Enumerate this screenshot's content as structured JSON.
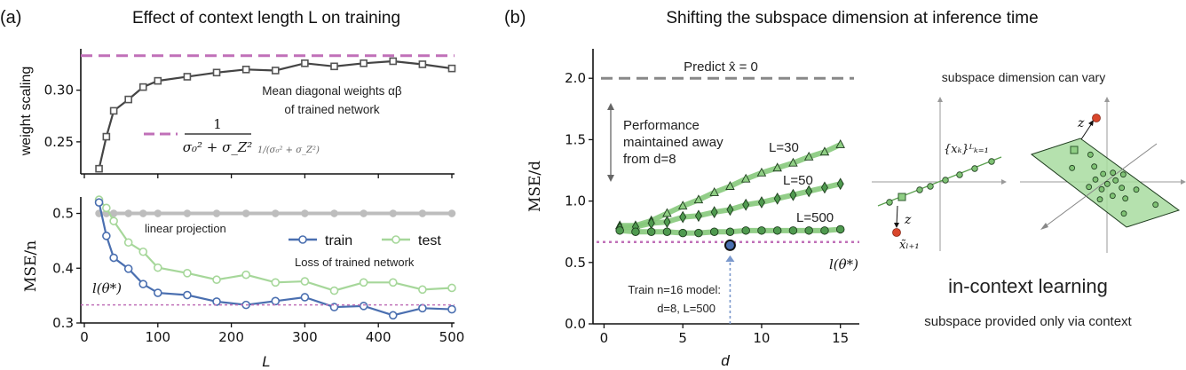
{
  "panel_a": {
    "letter": "(a)",
    "title": "Effect of context length L on training",
    "top_ylabel": "weight scaling",
    "bottom_ylabel": "MSE/n",
    "xlabel": "L",
    "top_annotation_line1": "Mean diagonal weights αβ",
    "top_annotation_line2": "of trained network",
    "ref_numerator": "1",
    "ref_denominator": "σ₀² + σ_Z²",
    "linear_projection_label": "linear projection",
    "loss_label": "Loss of trained network",
    "optimum_label": "l(θ*)"
  },
  "panel_b": {
    "letter": "(b)",
    "title": "Shifting the subspace dimension at inference time",
    "predict_label": "Predict x̂ = 0",
    "perf_line1": "Performance",
    "perf_line2": "maintained away",
    "perf_line3": "from d=8",
    "train_line1": "Train n=16 model:",
    "train_line2": "d=8, L=500",
    "optimum_label": "l(θ*)",
    "diagram": {
      "top_caption": "subspace dimension can vary",
      "context_label": "{xₖ}ᴸₖ₌₁",
      "z_label": "z",
      "query_label": "x̃ₗ₊₁",
      "main_caption": "in-context learning",
      "sub_caption": "subspace provided only via context"
    }
  },
  "colors": {
    "reference": "#c070b8",
    "train": "#4a6fb0",
    "test": "#a6d79a",
    "baseline": "#bdbdbd",
    "weights": "#444444",
    "green_dark": "#4f9a4f",
    "green_line": "#86c97b",
    "red": "#d9462b",
    "plane": "#a8dca0"
  },
  "chart_data": [
    {
      "type": "line",
      "title": "",
      "xlabel": "",
      "ylabel": "weight scaling",
      "xlim": [
        0,
        500
      ],
      "ylim": [
        0.219,
        0.34
      ],
      "xticks": [
        0,
        100,
        200,
        300,
        400,
        500
      ],
      "yticks": [
        0.25,
        0.3
      ],
      "ytick_labels": [
        "0.25",
        "0.30"
      ],
      "x": [
        20,
        30,
        40,
        60,
        80,
        100,
        140,
        180,
        220,
        260,
        300,
        340,
        380,
        420,
        460,
        500
      ],
      "series": [
        {
          "values": [
            0.224,
            0.255,
            0.28,
            0.291,
            0.303,
            0.309,
            0.313,
            0.317,
            0.32,
            0.319,
            0.326,
            0.323,
            0.326,
            0.328,
            0.325,
            0.321
          ],
          "marker": "square"
        }
      ],
      "reference_line": {
        "y": 0.3333,
        "style": "dashed",
        "label": "1/(σ₀² + σ_Z²)"
      },
      "grid": false
    },
    {
      "type": "line",
      "xlabel": "L",
      "ylabel": "MSE/n",
      "xlim": [
        0,
        500
      ],
      "ylim": [
        0.3,
        0.53
      ],
      "xticks": [
        0,
        100,
        200,
        300,
        400,
        500
      ],
      "xtick_labels": [
        "0",
        "100",
        "200",
        "300",
        "400",
        "500"
      ],
      "yticks": [
        0.3,
        0.4,
        0.5
      ],
      "ytick_labels": [
        "0.3",
        "0.4",
        "0.5"
      ],
      "x": [
        20,
        30,
        40,
        60,
        80,
        100,
        140,
        180,
        220,
        260,
        300,
        340,
        380,
        420,
        460,
        500
      ],
      "series": [
        {
          "name": "train",
          "values": [
            0.52,
            0.459,
            0.419,
            0.399,
            0.371,
            0.355,
            0.351,
            0.339,
            0.333,
            0.34,
            0.347,
            0.329,
            0.331,
            0.314,
            0.327,
            0.325
          ]
        },
        {
          "name": "test",
          "values": [
            0.525,
            0.51,
            0.486,
            0.447,
            0.43,
            0.401,
            0.391,
            0.379,
            0.388,
            0.374,
            0.376,
            0.359,
            0.374,
            0.374,
            0.361,
            0.364
          ]
        },
        {
          "values": [
            0.5,
            0.5,
            0.5,
            0.5,
            0.5,
            0.5,
            0.5,
            0.5,
            0.5,
            0.5,
            0.5,
            0.5,
            0.5,
            0.5,
            0.5,
            0.5
          ]
        }
      ],
      "legend": [
        "train",
        "test"
      ],
      "legend_placement": "right",
      "reference_line": {
        "y": 0.333,
        "style": "dotted"
      },
      "grid": false
    },
    {
      "type": "line",
      "xlabel": "d",
      "ylabel": "MSE/d",
      "xlim": [
        -0.7,
        16.2
      ],
      "ylim": [
        0,
        2.24
      ],
      "xticks": [
        0,
        5,
        10,
        15
      ],
      "xtick_labels": [
        "0",
        "5",
        "10",
        "15"
      ],
      "yticks": [
        0,
        0.5,
        1.0,
        1.5,
        2.0
      ],
      "ytick_labels": [
        "0.0",
        "0.5",
        "1.0",
        "1.5",
        "2.0"
      ],
      "x": [
        1,
        2,
        3,
        4,
        5,
        6,
        7,
        8,
        9,
        10,
        11,
        12,
        13,
        14,
        15
      ],
      "series": [
        {
          "name": "L=30",
          "marker": "triangle",
          "values": [
            0.8,
            0.8,
            0.84,
            0.9,
            0.96,
            1.01,
            1.07,
            1.12,
            1.18,
            1.23,
            1.27,
            1.31,
            1.36,
            1.4,
            1.46
          ]
        },
        {
          "name": "L=50",
          "marker": "diamond",
          "values": [
            0.78,
            0.79,
            0.82,
            0.83,
            0.87,
            0.88,
            0.91,
            0.93,
            0.97,
            0.99,
            1.02,
            1.05,
            1.08,
            1.11,
            1.14
          ]
        },
        {
          "name": "L=500",
          "marker": "circle",
          "values": [
            0.76,
            0.75,
            0.75,
            0.75,
            0.74,
            0.74,
            0.75,
            0.75,
            0.76,
            0.76,
            0.76,
            0.76,
            0.76,
            0.76,
            0.77
          ]
        }
      ],
      "baseline": {
        "y": 2.0,
        "style": "dashed"
      },
      "reference_line": {
        "y": 0.667,
        "style": "dotted"
      },
      "train_point": {
        "x": 8,
        "y": 0.64
      },
      "grid": false
    }
  ]
}
